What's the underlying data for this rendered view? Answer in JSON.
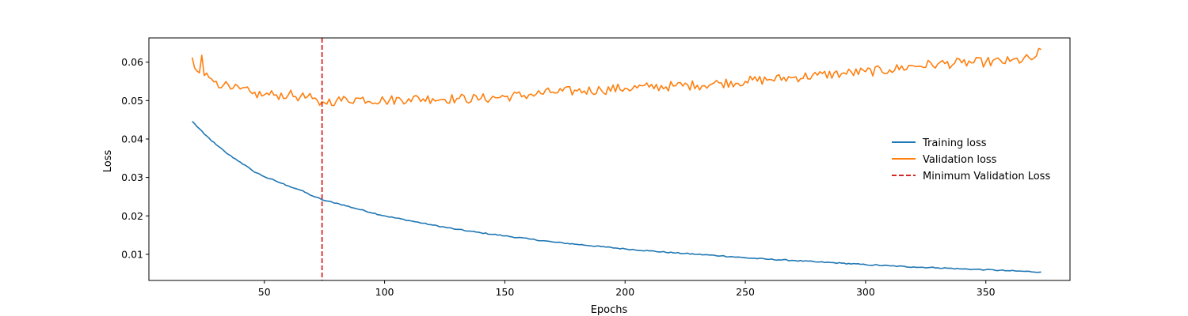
{
  "chart_data": {
    "type": "line",
    "title": "",
    "xlabel": "Epochs",
    "ylabel": "Loss",
    "xlim": [
      2,
      385
    ],
    "ylim": [
      0.0032,
      0.0663
    ],
    "x_ticks": [
      50,
      100,
      150,
      200,
      250,
      300,
      350
    ],
    "x_tick_labels": [
      "50",
      "100",
      "150",
      "200",
      "250",
      "300",
      "350"
    ],
    "y_ticks": [
      0.01,
      0.02,
      0.03,
      0.04,
      0.05,
      0.06
    ],
    "y_tick_labels": [
      "0.01",
      "0.02",
      "0.03",
      "0.04",
      "0.05",
      "0.06"
    ],
    "grid": false,
    "legend_position": "center-right",
    "x_start": 20,
    "x_end": 373,
    "series": [
      {
        "name": "Training loss",
        "color": "#1f77b4",
        "style": "solid",
        "anchors": [
          [
            20,
            0.0446
          ],
          [
            25,
            0.0413
          ],
          [
            30,
            0.0385
          ],
          [
            35,
            0.036
          ],
          [
            40,
            0.034
          ],
          [
            45,
            0.0318
          ],
          [
            50,
            0.0302
          ],
          [
            55,
            0.029
          ],
          [
            60,
            0.0278
          ],
          [
            65,
            0.0267
          ],
          [
            70,
            0.0252
          ],
          [
            75,
            0.024
          ],
          [
            80,
            0.0233
          ],
          [
            90,
            0.0216
          ],
          [
            100,
            0.02
          ],
          [
            110,
            0.0188
          ],
          [
            120,
            0.0176
          ],
          [
            130,
            0.0165
          ],
          [
            140,
            0.0156
          ],
          [
            150,
            0.0148
          ],
          [
            160,
            0.014
          ],
          [
            170,
            0.0132
          ],
          [
            180,
            0.0126
          ],
          [
            190,
            0.012
          ],
          [
            200,
            0.0114
          ],
          [
            210,
            0.0109
          ],
          [
            220,
            0.0104
          ],
          [
            230,
            0.01
          ],
          [
            240,
            0.0096
          ],
          [
            250,
            0.0091
          ],
          [
            260,
            0.0087
          ],
          [
            270,
            0.0084
          ],
          [
            280,
            0.008
          ],
          [
            290,
            0.0077
          ],
          [
            300,
            0.0073
          ],
          [
            310,
            0.007
          ],
          [
            320,
            0.0067
          ],
          [
            330,
            0.0065
          ],
          [
            340,
            0.0062
          ],
          [
            350,
            0.006
          ],
          [
            360,
            0.0057
          ],
          [
            373,
            0.0054
          ]
        ],
        "noise": 0.00015
      },
      {
        "name": "Validation loss",
        "color": "#ff7f0e",
        "style": "solid",
        "anchors": [
          [
            20,
            0.0612
          ],
          [
            21,
            0.0585
          ],
          [
            22,
            0.0577
          ],
          [
            23,
            0.0572
          ],
          [
            24,
            0.0618
          ],
          [
            25,
            0.0565
          ],
          [
            27,
            0.056
          ],
          [
            30,
            0.055
          ],
          [
            33,
            0.054
          ],
          [
            36,
            0.053
          ],
          [
            40,
            0.053
          ],
          [
            45,
            0.0518
          ],
          [
            50,
            0.0515
          ],
          [
            55,
            0.0515
          ],
          [
            60,
            0.0515
          ],
          [
            65,
            0.051
          ],
          [
            70,
            0.0505
          ],
          [
            73,
            0.0488
          ],
          [
            74,
            0.0497
          ],
          [
            80,
            0.05
          ],
          [
            90,
            0.0505
          ],
          [
            100,
            0.05
          ],
          [
            110,
            0.0505
          ],
          [
            120,
            0.0505
          ],
          [
            130,
            0.0505
          ],
          [
            140,
            0.0505
          ],
          [
            150,
            0.051
          ],
          [
            160,
            0.0515
          ],
          [
            170,
            0.0522
          ],
          [
            180,
            0.0525
          ],
          [
            190,
            0.0528
          ],
          [
            200,
            0.0532
          ],
          [
            210,
            0.0535
          ],
          [
            220,
            0.0538
          ],
          [
            230,
            0.054
          ],
          [
            240,
            0.0546
          ],
          [
            250,
            0.055
          ],
          [
            260,
            0.0555
          ],
          [
            270,
            0.056
          ],
          [
            280,
            0.0566
          ],
          [
            290,
            0.057
          ],
          [
            300,
            0.0575
          ],
          [
            310,
            0.058
          ],
          [
            320,
            0.059
          ],
          [
            330,
            0.0595
          ],
          [
            340,
            0.0598
          ],
          [
            350,
            0.06
          ],
          [
            360,
            0.0602
          ],
          [
            370,
            0.061
          ],
          [
            373,
            0.0633
          ]
        ],
        "noise": 0.0013
      }
    ],
    "reference_lines": [
      {
        "name": "Minimum Validation Loss",
        "orientation": "vertical",
        "x": 74,
        "color": "#d62728",
        "style": "dashed"
      }
    ],
    "legend": [
      "Training loss",
      "Validation loss",
      "Minimum Validation Loss"
    ]
  }
}
